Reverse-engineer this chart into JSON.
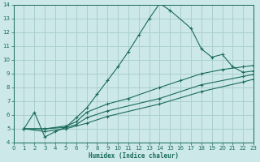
{
  "bg_color": "#cce8e8",
  "grid_color": "#aacfcf",
  "line_color": "#1a6b5a",
  "xlabel": "Humidex (Indice chaleur)",
  "xlim": [
    0,
    23
  ],
  "ylim": [
    4,
    14
  ],
  "yticks": [
    4,
    5,
    6,
    7,
    8,
    9,
    10,
    11,
    12,
    13,
    14
  ],
  "xticks": [
    0,
    1,
    2,
    3,
    4,
    5,
    6,
    7,
    8,
    9,
    10,
    11,
    12,
    13,
    14,
    15,
    16,
    17,
    18,
    19,
    20,
    21,
    22,
    23
  ],
  "line1_x": [
    1,
    2,
    3,
    4,
    5,
    6,
    7,
    8,
    9,
    10,
    11,
    12,
    13,
    14,
    15,
    17,
    18,
    19,
    20,
    21,
    22,
    23
  ],
  "line1_y": [
    5.0,
    6.2,
    4.4,
    4.8,
    5.1,
    5.8,
    6.5,
    7.5,
    8.5,
    9.5,
    10.6,
    11.8,
    13.0,
    14.1,
    13.6,
    12.3,
    10.8,
    10.2,
    10.4,
    9.5,
    9.1,
    9.2
  ],
  "line2_x": [
    1,
    3,
    5,
    6,
    7,
    9,
    11,
    14,
    16,
    18,
    20,
    22,
    23
  ],
  "line2_y": [
    5.0,
    5.0,
    5.2,
    5.5,
    6.2,
    6.8,
    7.2,
    8.0,
    8.5,
    9.0,
    9.3,
    9.5,
    9.6
  ],
  "line3_x": [
    1,
    3,
    5,
    6,
    7,
    9,
    14,
    18,
    22,
    23
  ],
  "line3_y": [
    5.0,
    5.0,
    5.1,
    5.3,
    5.8,
    6.3,
    7.2,
    8.2,
    8.8,
    8.95
  ],
  "line4_x": [
    1,
    3,
    5,
    7,
    9,
    14,
    18,
    22,
    23
  ],
  "line4_y": [
    5.0,
    4.8,
    5.0,
    5.4,
    5.9,
    6.8,
    7.7,
    8.4,
    8.6
  ]
}
